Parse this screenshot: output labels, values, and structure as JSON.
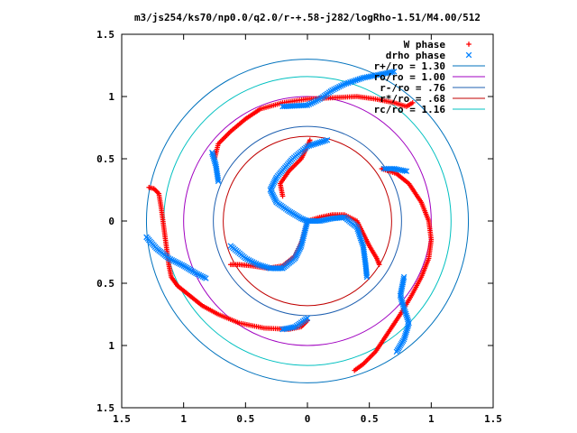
{
  "chart_data": {
    "type": "scatter",
    "title": "m3/js254/ks70/np0.0/q2.0/r-+.58-j282/logRho-1.51/M4.00/512",
    "xlim": [
      -1.5,
      1.5
    ],
    "ylim": [
      -1.5,
      1.5
    ],
    "x_ticks": [
      -1.5,
      -1,
      -0.5,
      0,
      0.5,
      1,
      1.5
    ],
    "y_ticks": [
      -1.5,
      -1,
      -0.5,
      0,
      0.5,
      1,
      1.5
    ],
    "x_tick_labels": [
      "1.5",
      "1",
      "0.5",
      "0",
      "0.5",
      "1",
      "1.5"
    ],
    "y_tick_labels": [
      "1.5",
      "1",
      "0.5",
      "0",
      "0.5",
      "1",
      "1.5"
    ],
    "grid": false,
    "legend_position": "top-right",
    "series": [
      {
        "name": "W phase",
        "marker": "plus",
        "color": "#ff0000",
        "arms": [
          [
            [
              -1.28,
              0.27
            ],
            [
              -1.24,
              0.26
            ],
            [
              -1.2,
              0.22
            ],
            [
              -1.18,
              0.1
            ],
            [
              -1.16,
              -0.05
            ],
            [
              -1.14,
              -0.2
            ],
            [
              -1.12,
              -0.35
            ],
            [
              -1.1,
              -0.45
            ],
            [
              -1.05,
              -0.52
            ],
            [
              -0.95,
              -0.6
            ],
            [
              -0.85,
              -0.68
            ],
            [
              -0.72,
              -0.75
            ],
            [
              -0.55,
              -0.82
            ],
            [
              -0.35,
              -0.86
            ],
            [
              -0.15,
              -0.87
            ],
            [
              -0.05,
              -0.85
            ],
            [
              0.0,
              -0.8
            ]
          ],
          [
            [
              -0.75,
              0.5
            ],
            [
              -0.72,
              0.62
            ],
            [
              -0.62,
              0.72
            ],
            [
              -0.5,
              0.82
            ],
            [
              -0.38,
              0.9
            ],
            [
              -0.2,
              0.95
            ],
            [
              0.0,
              0.98
            ],
            [
              0.2,
              0.99
            ],
            [
              0.4,
              1.0
            ],
            [
              0.55,
              0.98
            ],
            [
              0.7,
              0.95
            ],
            [
              0.8,
              0.92
            ],
            [
              0.85,
              0.95
            ]
          ],
          [
            [
              0.6,
              0.42
            ],
            [
              0.72,
              0.38
            ],
            [
              0.82,
              0.3
            ],
            [
              0.92,
              0.15
            ],
            [
              0.98,
              0.0
            ],
            [
              1.0,
              -0.15
            ],
            [
              0.98,
              -0.3
            ],
            [
              0.92,
              -0.45
            ],
            [
              0.84,
              -0.6
            ],
            [
              0.75,
              -0.75
            ],
            [
              0.65,
              -0.9
            ],
            [
              0.55,
              -1.05
            ],
            [
              0.45,
              -1.15
            ],
            [
              0.38,
              -1.2
            ]
          ],
          [
            [
              -0.62,
              -0.35
            ],
            [
              -0.55,
              -0.35
            ],
            [
              -0.45,
              -0.36
            ],
            [
              -0.32,
              -0.38
            ],
            [
              -0.2,
              -0.36
            ],
            [
              -0.1,
              -0.28
            ],
            [
              -0.04,
              -0.15
            ],
            [
              0.0,
              0.0
            ],
            [
              0.1,
              0.03
            ],
            [
              0.2,
              0.05
            ],
            [
              0.3,
              0.05
            ],
            [
              0.4,
              0.0
            ],
            [
              0.45,
              -0.1
            ],
            [
              0.5,
              -0.2
            ],
            [
              0.56,
              -0.3
            ],
            [
              0.58,
              -0.35
            ]
          ],
          [
            [
              -0.2,
              0.2
            ],
            [
              -0.22,
              0.3
            ],
            [
              -0.15,
              0.4
            ],
            [
              -0.05,
              0.5
            ],
            [
              0.0,
              0.6
            ],
            [
              0.02,
              0.65
            ]
          ]
        ]
      },
      {
        "name": "drho phase",
        "marker": "cross",
        "color": "#0080ff",
        "arms": [
          [
            [
              -1.3,
              -0.13
            ],
            [
              -1.22,
              -0.22
            ],
            [
              -1.12,
              -0.3
            ],
            [
              -1.0,
              -0.36
            ],
            [
              -0.9,
              -0.42
            ],
            [
              -0.82,
              -0.46
            ]
          ],
          [
            [
              -0.77,
              0.55
            ],
            [
              -0.74,
              0.45
            ],
            [
              -0.72,
              0.32
            ]
          ],
          [
            [
              -0.2,
              0.92
            ],
            [
              0.0,
              0.93
            ],
            [
              0.1,
              0.98
            ],
            [
              0.2,
              1.05
            ],
            [
              0.3,
              1.1
            ],
            [
              0.45,
              1.15
            ],
            [
              0.6,
              1.18
            ],
            [
              0.7,
              1.2
            ]
          ],
          [
            [
              0.62,
              0.42
            ],
            [
              0.7,
              0.42
            ],
            [
              0.8,
              0.4
            ]
          ],
          [
            [
              0.78,
              -0.45
            ],
            [
              0.75,
              -0.6
            ],
            [
              0.78,
              -0.7
            ],
            [
              0.82,
              -0.82
            ],
            [
              0.78,
              -0.95
            ],
            [
              0.72,
              -1.05
            ]
          ],
          [
            [
              -0.62,
              -0.2
            ],
            [
              -0.5,
              -0.3
            ],
            [
              -0.4,
              -0.35
            ],
            [
              -0.3,
              -0.38
            ],
            [
              -0.2,
              -0.38
            ],
            [
              -0.1,
              -0.3
            ],
            [
              -0.05,
              -0.2
            ],
            [
              0.0,
              0.0
            ],
            [
              0.1,
              0.0
            ],
            [
              0.2,
              0.02
            ],
            [
              0.3,
              0.03
            ],
            [
              0.4,
              -0.05
            ],
            [
              0.45,
              -0.2
            ],
            [
              0.47,
              -0.35
            ],
            [
              0.48,
              -0.45
            ]
          ],
          [
            [
              0.16,
              0.65
            ],
            [
              0.0,
              0.6
            ],
            [
              -0.12,
              0.5
            ],
            [
              -0.25,
              0.35
            ],
            [
              -0.3,
              0.25
            ],
            [
              -0.25,
              0.15
            ],
            [
              -0.15,
              0.08
            ],
            [
              -0.05,
              0.02
            ],
            [
              0.0,
              0.0
            ]
          ],
          [
            [
              -0.2,
              -0.87
            ],
            [
              -0.1,
              -0.85
            ],
            [
              0.0,
              -0.78
            ]
          ]
        ]
      }
    ],
    "circles": [
      {
        "name": "r+/ro = 1.30",
        "r": 1.3,
        "color": "#0072bd"
      },
      {
        "name": "ro/ro = 1.00",
        "r": 1.0,
        "color": "#a000c0"
      },
      {
        "name": "r-/ro = .76",
        "r": 0.76,
        "color": "#1f60b0"
      },
      {
        "name": "r*/ro = .68",
        "r": 0.68,
        "color": "#c00000"
      },
      {
        "name": "rc/ro = 1.16",
        "r": 1.16,
        "color": "#00c0c0"
      }
    ]
  }
}
